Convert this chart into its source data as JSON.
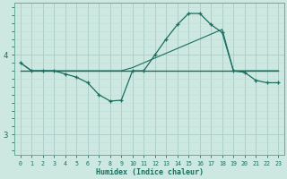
{
  "xlabel": "Humidex (Indice chaleur)",
  "bg_color": "#cce8e0",
  "grid_color_major": "#aaccc4",
  "grid_color_minor": "#c0ddd6",
  "line_color": "#1a6e60",
  "xlim": [
    -0.5,
    23.5
  ],
  "ylim": [
    2.75,
    4.65
  ],
  "yticks": [
    3,
    4
  ],
  "xticks": [
    0,
    1,
    2,
    3,
    4,
    5,
    6,
    7,
    8,
    9,
    10,
    11,
    12,
    13,
    14,
    15,
    16,
    17,
    18,
    19,
    20,
    21,
    22,
    23
  ],
  "series1_x": [
    0,
    1,
    2,
    3,
    4,
    5,
    6,
    7,
    8,
    9,
    10,
    11,
    12,
    13,
    14,
    15,
    16,
    17,
    18,
    19,
    20,
    21,
    22,
    23
  ],
  "series1_y": [
    3.9,
    3.8,
    3.8,
    3.8,
    3.76,
    3.72,
    3.65,
    3.5,
    3.42,
    3.43,
    3.8,
    3.8,
    4.0,
    4.2,
    4.38,
    4.52,
    4.52,
    4.38,
    4.28,
    3.8,
    3.78,
    3.68,
    3.65,
    3.65
  ],
  "series2_x": [
    0,
    1,
    2,
    3,
    4,
    5,
    6,
    7,
    8,
    9,
    10,
    11,
    12,
    13,
    14,
    15,
    16,
    17,
    18,
    19,
    20,
    21,
    22,
    23
  ],
  "series2_y": [
    3.9,
    3.8,
    3.8,
    3.8,
    3.8,
    3.8,
    3.8,
    3.8,
    3.8,
    3.8,
    3.84,
    3.9,
    3.96,
    4.02,
    4.08,
    4.14,
    4.2,
    4.26,
    4.32,
    3.8,
    3.8,
    3.8,
    3.8,
    3.8
  ],
  "series3_x": [
    0,
    1,
    2,
    3,
    4,
    5,
    6,
    7,
    8,
    9,
    10,
    11,
    12,
    13,
    14,
    15,
    16,
    17,
    18,
    19,
    20,
    21,
    22,
    23
  ],
  "series3_y": [
    3.8,
    3.8,
    3.8,
    3.8,
    3.8,
    3.8,
    3.8,
    3.8,
    3.8,
    3.8,
    3.8,
    3.8,
    3.8,
    3.8,
    3.8,
    3.8,
    3.8,
    3.8,
    3.8,
    3.8,
    3.8,
    3.8,
    3.8,
    3.8
  ]
}
